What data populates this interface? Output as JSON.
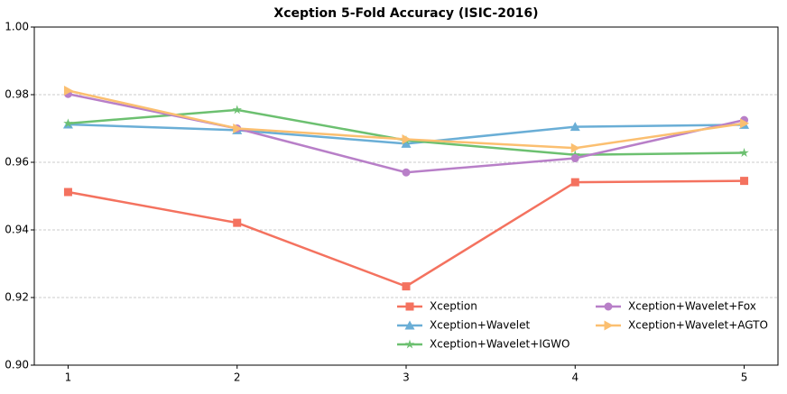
{
  "chart_data": {
    "type": "line",
    "title": "Xception 5-Fold Accuracy (ISIC-2016)",
    "x": [
      1,
      2,
      3,
      4,
      5
    ],
    "xlim": [
      0.8,
      5.2
    ],
    "xticks": [
      1,
      2,
      3,
      4,
      5
    ],
    "ylim": [
      0.9,
      1.0
    ],
    "yticks": [
      {
        "value": 0.9,
        "label": "0.90"
      },
      0.92,
      0.94,
      0.96,
      0.98,
      {
        "value": 1.0,
        "label": "1.00"
      }
    ],
    "grid": true,
    "legend": "lower right",
    "series": [
      {
        "name": "Xception",
        "color": "#f4725f",
        "marker": "square",
        "values": [
          0.9512,
          0.9421,
          0.9233,
          0.9541,
          0.9545
        ]
      },
      {
        "name": "Xception+Wavelet",
        "color": "#6aaed6",
        "marker": "triangle-up",
        "values": [
          0.9712,
          0.9695,
          0.9655,
          0.9705,
          0.9711
        ]
      },
      {
        "name": "Xception+Wavelet+IGWO",
        "color": "#6cc070",
        "marker": "star",
        "values": [
          0.9715,
          0.9755,
          0.9665,
          0.9622,
          0.9628
        ]
      },
      {
        "name": "Xception+Wavelet+Fox",
        "color": "#b87fc8",
        "marker": "circle",
        "values": [
          0.9802,
          0.97,
          0.957,
          0.9612,
          0.9725
        ]
      },
      {
        "name": "Xception+Wavelet+AGTO",
        "color": "#fbbf70",
        "marker": "triangle-right",
        "values": [
          0.9812,
          0.97,
          0.9668,
          0.9642,
          0.9715
        ]
      }
    ]
  }
}
